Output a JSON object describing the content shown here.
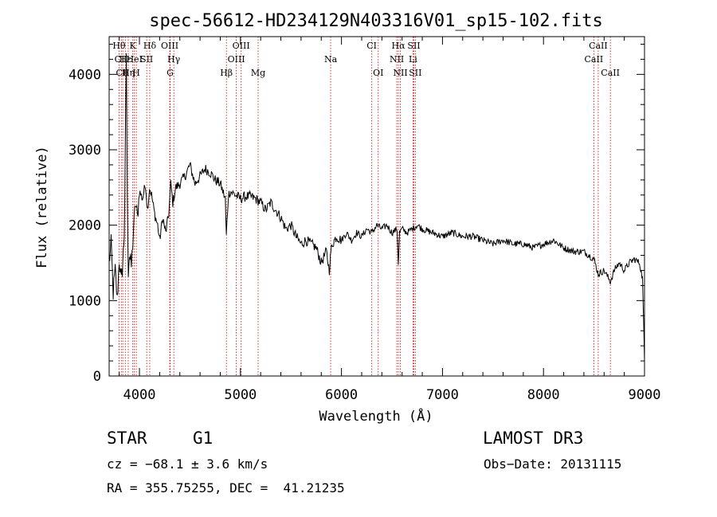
{
  "chart_data": {
    "type": "line",
    "title": "spec-56612-HD234129N403316V01_sp15-102.fits",
    "xlabel": "Wavelength (Å)",
    "ylabel": "Flux (relative)",
    "xlim": [
      3700,
      9000
    ],
    "ylim": [
      0,
      4500
    ],
    "xticks": [
      4000,
      5000,
      6000,
      7000,
      8000,
      9000
    ],
    "yticks": [
      0,
      1000,
      2000,
      3000,
      4000
    ],
    "grid": false,
    "line_color": "#000000",
    "marker_color": "#cc0000",
    "series": [
      {
        "x": [
          3700,
          3720,
          3740,
          3760,
          3780,
          3800,
          3820,
          3835,
          3850,
          3860,
          3870,
          3880,
          3890,
          3900,
          3920,
          3940,
          3960,
          3980,
          4000,
          4030,
          4060,
          4080,
          4100,
          4120,
          4150,
          4180,
          4200,
          4230,
          4260,
          4290,
          4310,
          4330,
          4360,
          4400,
          4450,
          4500,
          4550,
          4600,
          4650,
          4700,
          4750,
          4800,
          4850,
          4860,
          4880,
          4900,
          4950,
          5000,
          5050,
          5100,
          5150,
          5200,
          5250,
          5300,
          5350,
          5400,
          5450,
          5500,
          5550,
          5600,
          5650,
          5700,
          5750,
          5800,
          5850,
          5880,
          5895,
          5910,
          5950,
          6000,
          6050,
          6100,
          6150,
          6200,
          6250,
          6300,
          6350,
          6400,
          6450,
          6500,
          6550,
          6563,
          6575,
          6600,
          6650,
          6700,
          6750,
          6800,
          6900,
          7000,
          7100,
          7200,
          7300,
          7400,
          7500,
          7600,
          7700,
          7800,
          7900,
          8000,
          8100,
          8200,
          8300,
          8400,
          8500,
          8542,
          8600,
          8662,
          8700,
          8750,
          8800,
          8850,
          8900,
          8950,
          8980,
          9000
        ],
        "y": [
          1500,
          1750,
          1100,
          1400,
          1000,
          1550,
          1250,
          1500,
          1900,
          3000,
          4300,
          2300,
          1400,
          1600,
          1450,
          1900,
          2300,
          2100,
          2450,
          2350,
          2550,
          2200,
          2500,
          2400,
          2150,
          2000,
          1800,
          2100,
          1900,
          2150,
          2550,
          2300,
          2500,
          2550,
          2650,
          2800,
          2550,
          2650,
          2750,
          2700,
          2600,
          2550,
          2350,
          1850,
          2400,
          2450,
          2400,
          2350,
          2380,
          2380,
          2350,
          2300,
          2200,
          2300,
          2200,
          2100,
          1950,
          2000,
          1850,
          1750,
          1800,
          1750,
          1700,
          1500,
          1650,
          1400,
          1650,
          1750,
          1850,
          1800,
          1900,
          1800,
          1900,
          1850,
          1950,
          1900,
          2000,
          1950,
          2000,
          1900,
          1950,
          1500,
          1900,
          1950,
          1900,
          1950,
          2000,
          1950,
          1900,
          1850,
          1900,
          1850,
          1850,
          1800,
          1750,
          1800,
          1750,
          1750,
          1700,
          1750,
          1800,
          1700,
          1650,
          1650,
          1550,
          1350,
          1400,
          1250,
          1400,
          1500,
          1400,
          1500,
          1550,
          1500,
          1300,
          200
        ]
      }
    ],
    "line_labels": [
      {
        "label": "Hθ",
        "x": 3798,
        "row": 0
      },
      {
        "label": "CII",
        "x": 3820,
        "row": 1
      },
      {
        "label": "CII",
        "x": 3835,
        "row": 2
      },
      {
        "label": "Hε",
        "x": 3860,
        "row": 1
      },
      {
        "label": "Hη",
        "x": 3889,
        "row": 2
      },
      {
        "label": "K",
        "x": 3934,
        "row": 0
      },
      {
        "label": "HeI",
        "x": 3950,
        "row": 1
      },
      {
        "label": "H",
        "x": 3969,
        "row": 2
      },
      {
        "label": "SII",
        "x": 4072,
        "row": 1
      },
      {
        "label": "Hδ",
        "x": 4102,
        "row": 0
      },
      {
        "label": "OIII",
        "x": 4300,
        "row": 0
      },
      {
        "label": "Hγ",
        "x": 4340,
        "row": 1
      },
      {
        "label": "G",
        "x": 4304,
        "row": 2
      },
      {
        "label": "Hβ",
        "x": 4861,
        "row": 2
      },
      {
        "label": "OIII",
        "x": 4959,
        "row": 1
      },
      {
        "label": "OIII",
        "x": 5007,
        "row": 0
      },
      {
        "label": "Mg",
        "x": 5175,
        "row": 2
      },
      {
        "label": "Na",
        "x": 5893,
        "row": 1
      },
      {
        "label": "CI",
        "x": 6300,
        "row": 0
      },
      {
        "label": "OI",
        "x": 6364,
        "row": 2
      },
      {
        "label": "Hα",
        "x": 6563,
        "row": 0
      },
      {
        "label": "NII",
        "x": 6548,
        "row": 1
      },
      {
        "label": "NII",
        "x": 6583,
        "row": 2
      },
      {
        "label": "SII",
        "x": 6717,
        "row": 0
      },
      {
        "label": "Li",
        "x": 6708,
        "row": 1
      },
      {
        "label": "SII",
        "x": 6731,
        "row": 2
      },
      {
        "label": "CaII",
        "x": 8542,
        "row": 0
      },
      {
        "label": "CaII",
        "x": 8498,
        "row": 1
      },
      {
        "label": "CaII",
        "x": 8662,
        "row": 2
      }
    ]
  },
  "footer": {
    "object_class": "STAR",
    "subclass": "G1",
    "survey": "LAMOST DR3",
    "velocity": "cz = −68.1 ± 3.6 km/s",
    "obs_date": "Obs−Date: 20131115",
    "coords": "RA = 355.75255, DEC =  41.21235"
  }
}
